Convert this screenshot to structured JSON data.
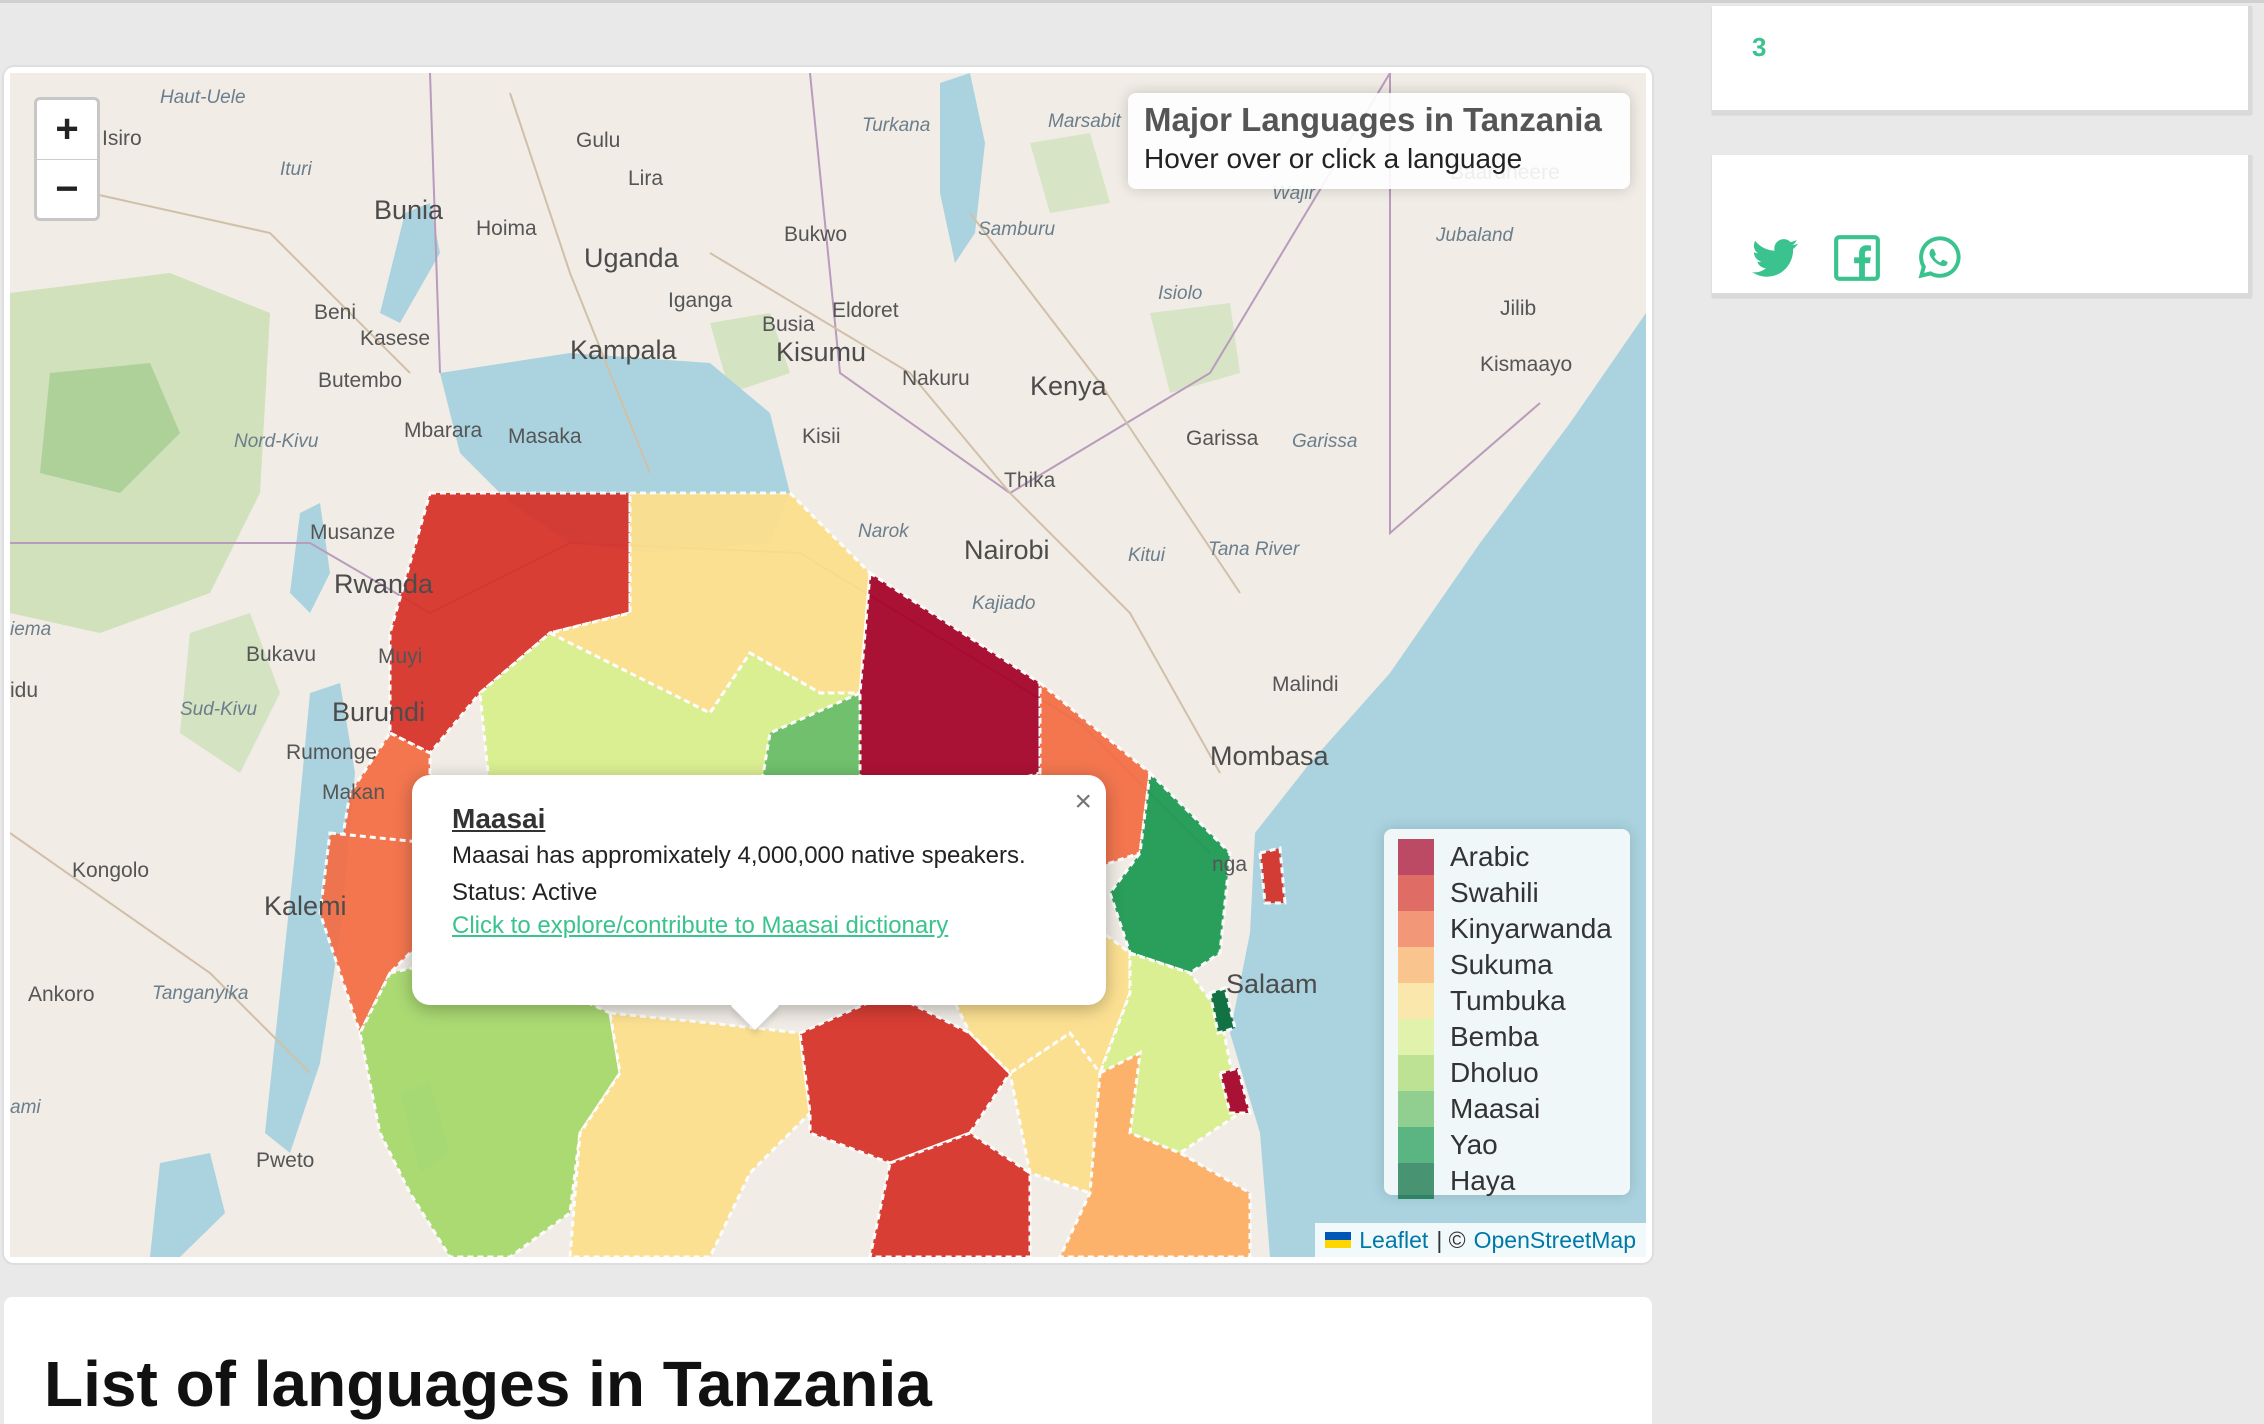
{
  "map": {
    "zoom_in": "+",
    "zoom_out": "−",
    "info": {
      "title": "Major Languages in Tanzania",
      "subtitle": "Hover over or click a language"
    },
    "places": [
      {
        "name": "Haut-Uele",
        "style": "it"
      },
      {
        "name": "Isiro",
        "style": ""
      },
      {
        "name": "Gulu",
        "style": ""
      },
      {
        "name": "Turkana",
        "style": "it"
      },
      {
        "name": "Marsabit",
        "style": "it"
      },
      {
        "name": "Ituri",
        "style": "it"
      },
      {
        "name": "Lira",
        "style": ""
      },
      {
        "name": "Bunia",
        "style": "big"
      },
      {
        "name": "Hoima",
        "style": ""
      },
      {
        "name": "Uganda",
        "style": "big"
      },
      {
        "name": "Bukwo",
        "style": ""
      },
      {
        "name": "Samburu",
        "style": "it"
      },
      {
        "name": "Wajir",
        "style": "it"
      },
      {
        "name": "Baardheere",
        "style": ""
      },
      {
        "name": "Jubaland",
        "style": "it"
      },
      {
        "name": "Isiolo",
        "style": "it"
      },
      {
        "name": "Beni",
        "style": ""
      },
      {
        "name": "Iganga",
        "style": ""
      },
      {
        "name": "Busia",
        "style": ""
      },
      {
        "name": "Eldoret",
        "style": ""
      },
      {
        "name": "Kasese",
        "style": ""
      },
      {
        "name": "Kampala",
        "style": "big"
      },
      {
        "name": "Kisumu",
        "style": "big"
      },
      {
        "name": "Jilib",
        "style": ""
      },
      {
        "name": "Butembo",
        "style": ""
      },
      {
        "name": "Nakuru",
        "style": ""
      },
      {
        "name": "Kenya",
        "style": "big"
      },
      {
        "name": "Kismaayo",
        "style": ""
      },
      {
        "name": "Mbarara",
        "style": ""
      },
      {
        "name": "Masaka",
        "style": ""
      },
      {
        "name": "Kisii",
        "style": ""
      },
      {
        "name": "Garissa",
        "style": ""
      },
      {
        "name": "Garissa",
        "style": "it"
      },
      {
        "name": "Nord-Kivu",
        "style": "it"
      },
      {
        "name": "Thika",
        "style": ""
      },
      {
        "name": "Musanze",
        "style": ""
      },
      {
        "name": "Narok",
        "style": "it"
      },
      {
        "name": "Nairobi",
        "style": "big"
      },
      {
        "name": "Kitui",
        "style": "it"
      },
      {
        "name": "Tana River",
        "style": "it"
      },
      {
        "name": "Rwanda",
        "style": "big"
      },
      {
        "name": "Kajiado",
        "style": "it"
      },
      {
        "name": "Bukavu",
        "style": ""
      },
      {
        "name": "Muyi",
        "style": ""
      },
      {
        "name": "Malindi",
        "style": ""
      },
      {
        "name": "Sud-Kivu",
        "style": "it"
      },
      {
        "name": "Burundi",
        "style": "big"
      },
      {
        "name": "Rumonge",
        "style": ""
      },
      {
        "name": "Mombasa",
        "style": "big"
      },
      {
        "name": "Makan",
        "style": ""
      },
      {
        "name": "Kongolo",
        "style": ""
      },
      {
        "name": "Kalemi",
        "style": "big"
      },
      {
        "name": "Ankoro",
        "style": ""
      },
      {
        "name": "Tanganyika",
        "style": "it"
      },
      {
        "name": "Salaam",
        "style": "big"
      },
      {
        "name": "nga",
        "style": ""
      },
      {
        "name": "Pweto",
        "style": ""
      },
      {
        "name": "iema",
        "style": "it"
      },
      {
        "name": "idu",
        "style": ""
      },
      {
        "name": "ami",
        "style": "it"
      }
    ],
    "legend": [
      {
        "label": "Arabic",
        "color": "#a50026"
      },
      {
        "label": "Swahili",
        "color": "#d73027"
      },
      {
        "label": "Kinyarwanda",
        "color": "#f46d43"
      },
      {
        "label": "Sukuma",
        "color": "#fdae61"
      },
      {
        "label": "Tumbuka",
        "color": "#fee08b"
      },
      {
        "label": "Bemba",
        "color": "#d9ef8b"
      },
      {
        "label": "Dholuo",
        "color": "#a6d96a"
      },
      {
        "label": "Maasai",
        "color": "#66bd63"
      },
      {
        "label": "Yao",
        "color": "#1a9850"
      },
      {
        "label": "Haya",
        "color": "#006837"
      }
    ],
    "popup": {
      "close": "×",
      "title": "Maasai",
      "line1": "Maasai has appromixately 4,000,000 native speakers.",
      "line2": "Status: Active",
      "link": "Click to explore/contribute to Maasai dictionary"
    },
    "attribution": {
      "leaflet": "Leaflet",
      "separator": "| ©",
      "osm": "OpenStreetMap"
    }
  },
  "sidebar": {
    "count": "3"
  },
  "share": {
    "icons": [
      "twitter-icon",
      "facebook-icon",
      "whatsapp-icon"
    ],
    "color": "#3ac38e"
  },
  "list": {
    "title": "List of languages in Tanzania"
  }
}
